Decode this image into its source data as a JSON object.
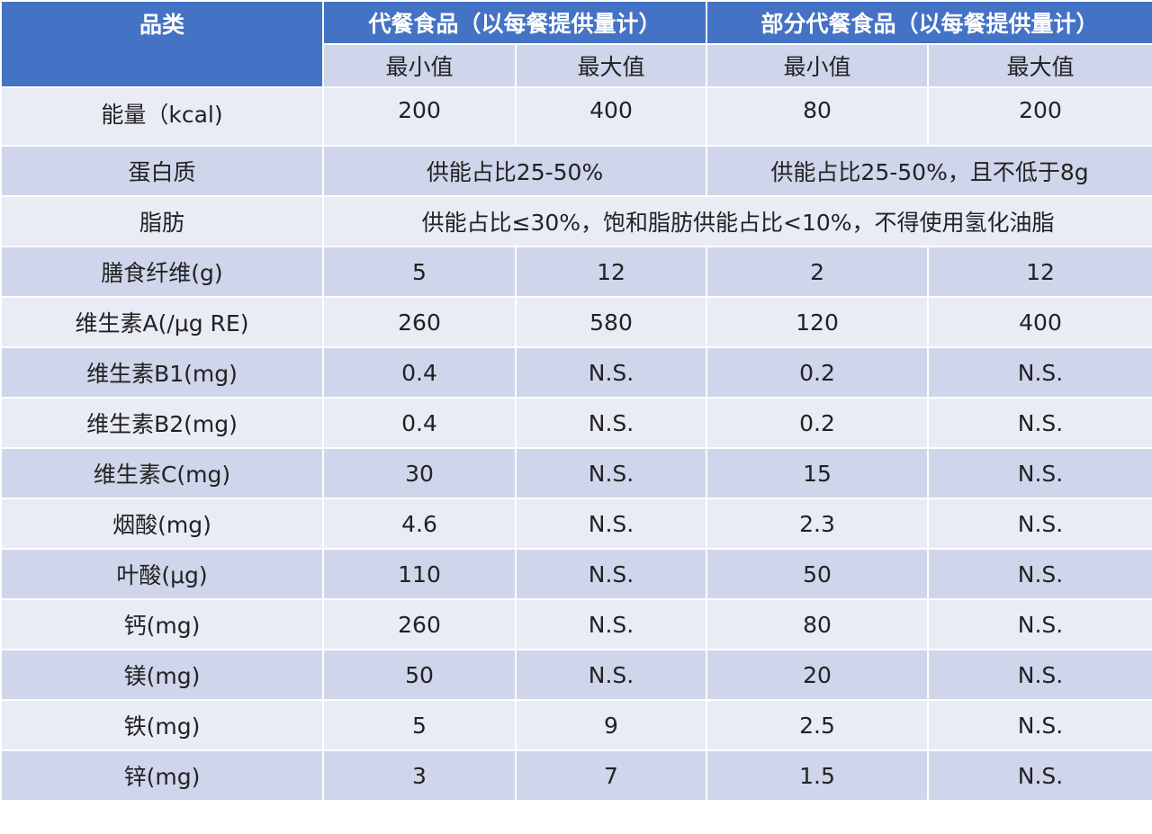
{
  "table": {
    "header": {
      "category": "品类",
      "groups": [
        "代餐食品（以每餐提供量计）",
        "部分代餐食品（以每餐提供量计）"
      ],
      "sub": [
        "最小值",
        "最大值",
        "最小值",
        "最大值"
      ]
    },
    "rows": [
      [
        "能量（kcal)",
        "200",
        "400",
        "80",
        "200"
      ],
      [
        "蛋白质",
        "供能占比25-50%",
        "供能占比25-50%，且不低于8g"
      ],
      [
        "脂肪",
        "供能占比≤30%，饱和脂肪供能占比<10%，不得使用氢化油脂"
      ],
      [
        "膳食纤维(g)",
        "5",
        "12",
        "2",
        "12"
      ],
      [
        "维生素A(/μg RE)",
        "260",
        "580",
        "120",
        "400"
      ],
      [
        "维生素B1(mg)",
        "0.4",
        "N.S.",
        "0.2",
        "N.S."
      ],
      [
        "维生素B2(mg)",
        "0.4",
        "N.S.",
        "0.2",
        "N.S."
      ],
      [
        "维生素C(mg)",
        "30",
        "N.S.",
        "15",
        "N.S."
      ],
      [
        "烟酸(mg)",
        "4.6",
        "N.S.",
        "2.3",
        "N.S."
      ],
      [
        "叶酸(μg)",
        "110",
        "N.S.",
        "50",
        "N.S."
      ],
      [
        "钙(mg)",
        "260",
        "N.S.",
        "80",
        "N.S."
      ],
      [
        "镁(mg)",
        "50",
        "N.S.",
        "20",
        "N.S."
      ],
      [
        "铁(mg)",
        "5",
        "9",
        "2.5",
        "N.S."
      ],
      [
        "锌(mg)",
        "3",
        "7",
        "1.5",
        "N.S."
      ]
    ]
  }
}
